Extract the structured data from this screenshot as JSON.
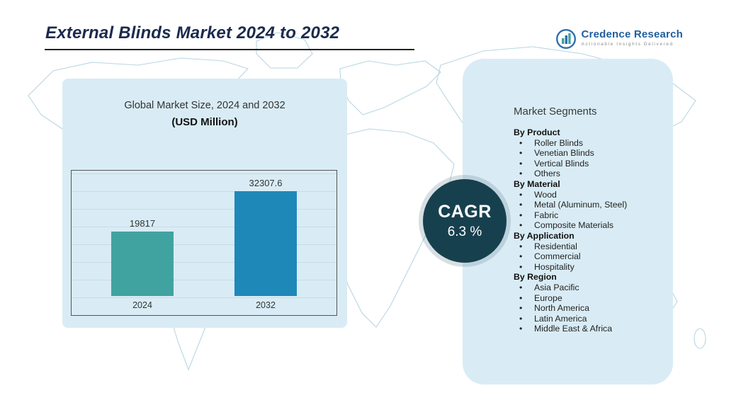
{
  "header": {
    "title": "External Blinds Market 2024 to 2032"
  },
  "logo": {
    "name": "Credence Research",
    "tagline": "Actionable Insights Delivered"
  },
  "market_panel": {
    "line1": "Global Market Size, 2024 and 2032",
    "line2": "(USD Million)"
  },
  "chart_data": {
    "type": "bar",
    "categories": [
      "2024",
      "2032"
    ],
    "values": [
      19817,
      32307.6
    ],
    "title": "Global Market Size, 2024 and 2032 (USD Million)",
    "xlabel": "",
    "ylabel": "USD Million",
    "ylim": [
      0,
      35000
    ],
    "grid": "horizontal",
    "bar_colors": [
      "#41a3a0",
      "#1e88b9"
    ],
    "value_labels": [
      "19817",
      "32307.6"
    ]
  },
  "cagr": {
    "label": "CAGR",
    "value": "6.3 %"
  },
  "segments": {
    "title": "Market Segments",
    "groups": [
      {
        "heading": "By Product",
        "items": [
          "Roller Blinds",
          "Venetian Blinds",
          "Vertical Blinds",
          "Others"
        ]
      },
      {
        "heading": "By Material",
        "items": [
          "Wood",
          "Metal (Aluminum, Steel)",
          "Fabric",
          "Composite Materials"
        ]
      },
      {
        "heading": "By Application",
        "items": [
          "Residential",
          "Commercial",
          "Hospitality"
        ]
      },
      {
        "heading": "By Region",
        "items": [
          "Asia Pacific",
          "Europe",
          "North America",
          "Latin America",
          "Middle East & Africa"
        ]
      }
    ]
  },
  "colors": {
    "title_navy": "#1c2b4d",
    "panel_blue": "#d9ecf5",
    "bar_teal": "#41a3a0",
    "bar_blue": "#1e88b9",
    "cagr_circle": "#17404e",
    "map_outline": "#b9d6e2",
    "logo_blue": "#1f5f9e"
  }
}
